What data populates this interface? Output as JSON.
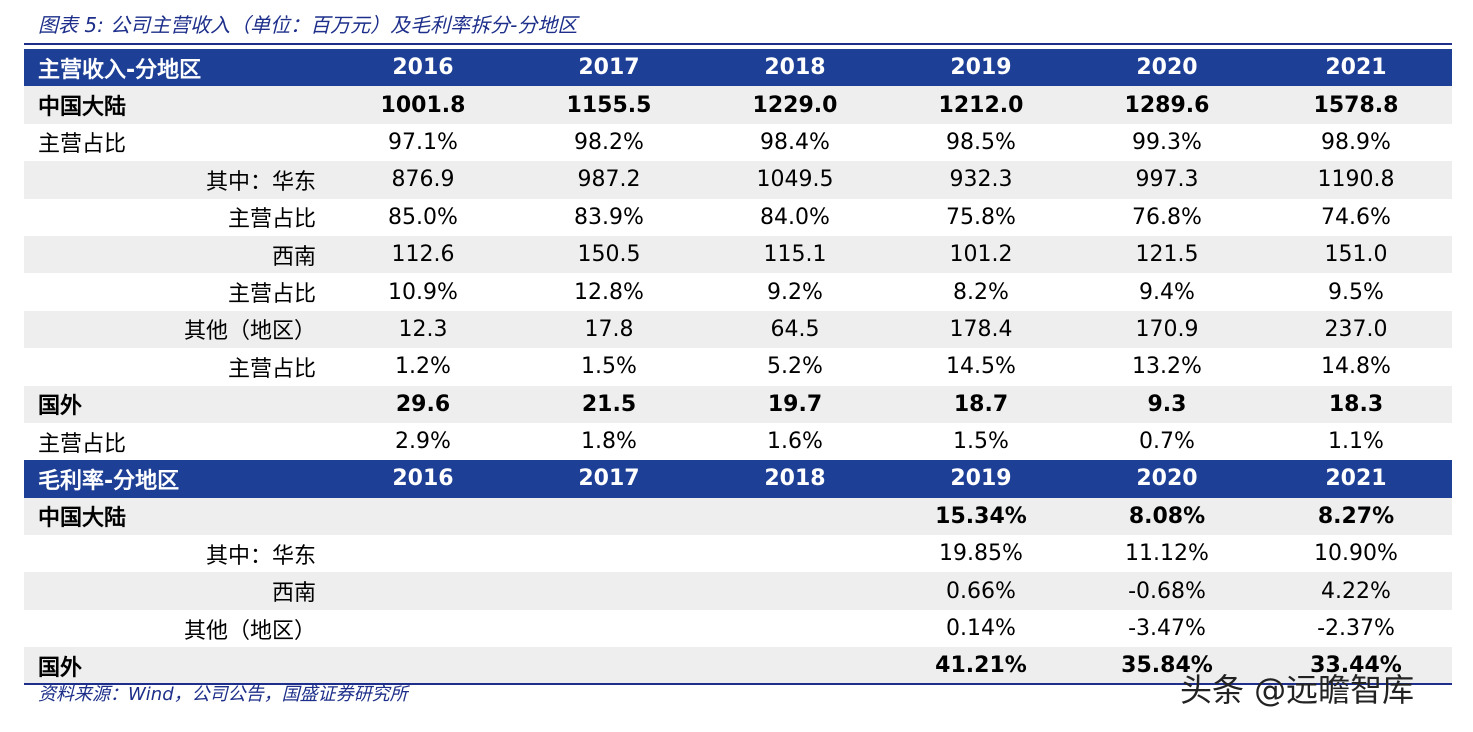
{
  "caption": "图表 5: 公司主营收入（单位：百万元）及毛利率拆分-分地区",
  "revenue": {
    "header": [
      "主营收入-分地区",
      "2016",
      "2017",
      "2018",
      "2019",
      "2020",
      "2021"
    ],
    "rows": [
      [
        "中国大陆",
        "1001.8",
        "1155.5",
        "1229.0",
        "1212.0",
        "1289.6",
        "1578.8"
      ],
      [
        "主营占比",
        "97.1%",
        "98.2%",
        "98.4%",
        "98.5%",
        "99.3%",
        "98.9%"
      ],
      [
        "其中：华东",
        "876.9",
        "987.2",
        "1049.5",
        "932.3",
        "997.3",
        "1190.8"
      ],
      [
        "主营占比",
        "85.0%",
        "83.9%",
        "84.0%",
        "75.8%",
        "76.8%",
        "74.6%"
      ],
      [
        "西南",
        "112.6",
        "150.5",
        "115.1",
        "101.2",
        "121.5",
        "151.0"
      ],
      [
        "主营占比",
        "10.9%",
        "12.8%",
        "9.2%",
        "8.2%",
        "9.4%",
        "9.5%"
      ],
      [
        "其他（地区）",
        "12.3",
        "17.8",
        "64.5",
        "178.4",
        "170.9",
        "237.0"
      ],
      [
        "主营占比",
        "1.2%",
        "1.5%",
        "5.2%",
        "14.5%",
        "13.2%",
        "14.8%"
      ],
      [
        "国外",
        "29.6",
        "21.5",
        "19.7",
        "18.7",
        "9.3",
        "18.3"
      ],
      [
        "主营占比",
        "2.9%",
        "1.8%",
        "1.6%",
        "1.5%",
        "0.7%",
        "1.1%"
      ]
    ]
  },
  "margin": {
    "header": [
      "毛利率-分地区",
      "2016",
      "2017",
      "2018",
      "2019",
      "2020",
      "2021"
    ],
    "rows": [
      [
        "中国大陆",
        "",
        "",
        "",
        "15.34%",
        "8.08%",
        "8.27%"
      ],
      [
        "其中：华东",
        "",
        "",
        "",
        "19.85%",
        "11.12%",
        "10.90%"
      ],
      [
        "西南",
        "",
        "",
        "",
        "0.66%",
        "-0.68%",
        "4.22%"
      ],
      [
        "其他（地区）",
        "",
        "",
        "",
        "0.14%",
        "-3.47%",
        "-2.37%"
      ],
      [
        "国外",
        "",
        "",
        "",
        "41.21%",
        "35.84%",
        "33.44%"
      ]
    ]
  },
  "source": "资料来源：Wind，公司公告，国盛证券研究所",
  "watermark": "头条 @远瞻智库"
}
